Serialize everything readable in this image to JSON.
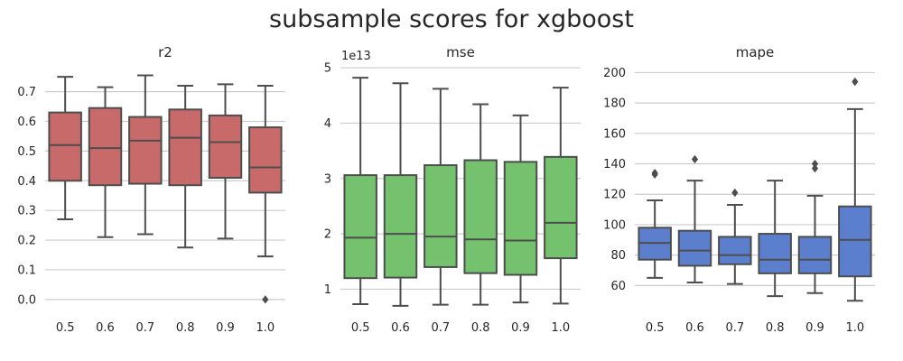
{
  "figure": {
    "title": "subsample scores for xgboost"
  },
  "chart_data": [
    {
      "type": "box",
      "title": "r2",
      "color": "#c96a6a",
      "categories": [
        "0.5",
        "0.6",
        "0.7",
        "0.8",
        "0.9",
        "1.0"
      ],
      "yticks": [
        0.0,
        0.1,
        0.2,
        0.3,
        0.4,
        0.5,
        0.6,
        0.7
      ],
      "ytick_labels": [
        "0.0",
        "0.1",
        "0.2",
        "0.3",
        "0.4",
        "0.5",
        "0.6",
        "0.7"
      ],
      "ylim": [
        -0.04,
        0.79
      ],
      "offset_text": "",
      "grid": true,
      "boxes": [
        {
          "low": 0.27,
          "q1": 0.4,
          "median": 0.52,
          "q3": 0.63,
          "high": 0.75,
          "fliers": []
        },
        {
          "low": 0.21,
          "q1": 0.385,
          "median": 0.51,
          "q3": 0.645,
          "high": 0.715,
          "fliers": []
        },
        {
          "low": 0.22,
          "q1": 0.39,
          "median": 0.535,
          "q3": 0.615,
          "high": 0.755,
          "fliers": []
        },
        {
          "low": 0.175,
          "q1": 0.385,
          "median": 0.545,
          "q3": 0.64,
          "high": 0.72,
          "fliers": []
        },
        {
          "low": 0.205,
          "q1": 0.41,
          "median": 0.53,
          "q3": 0.62,
          "high": 0.725,
          "fliers": []
        },
        {
          "low": 0.145,
          "q1": 0.36,
          "median": 0.445,
          "q3": 0.58,
          "high": 0.72,
          "fliers": [
            0.0
          ]
        }
      ]
    },
    {
      "type": "box",
      "title": "mse",
      "color": "#74c16e",
      "categories": [
        "0.5",
        "0.6",
        "0.7",
        "0.8",
        "0.9",
        "1.0"
      ],
      "yticks": [
        1,
        2,
        3,
        4,
        5
      ],
      "ytick_labels": [
        "1",
        "2",
        "3",
        "4",
        "5"
      ],
      "ylim": [
        0.6,
        5.05
      ],
      "offset_text": "1e13",
      "grid": true,
      "boxes": [
        {
          "low": 0.73,
          "q1": 1.2,
          "median": 1.93,
          "q3": 3.06,
          "high": 4.82,
          "fliers": []
        },
        {
          "low": 0.7,
          "q1": 1.21,
          "median": 2.0,
          "q3": 3.06,
          "high": 4.72,
          "fliers": []
        },
        {
          "low": 0.72,
          "q1": 1.4,
          "median": 1.95,
          "q3": 3.24,
          "high": 4.62,
          "fliers": []
        },
        {
          "low": 0.72,
          "q1": 1.29,
          "median": 1.9,
          "q3": 3.33,
          "high": 4.34,
          "fliers": []
        },
        {
          "low": 0.76,
          "q1": 1.26,
          "median": 1.88,
          "q3": 3.3,
          "high": 4.14,
          "fliers": []
        },
        {
          "low": 0.74,
          "q1": 1.56,
          "median": 2.2,
          "q3": 3.39,
          "high": 4.64,
          "fliers": []
        }
      ]
    },
    {
      "type": "box",
      "title": "mape",
      "color": "#5b7fcd",
      "categories": [
        "0.5",
        "0.6",
        "0.7",
        "0.8",
        "0.9",
        "1.0"
      ],
      "yticks": [
        60,
        80,
        100,
        120,
        140,
        160,
        180,
        200
      ],
      "ytick_labels": [
        "60",
        "80",
        "100",
        "120",
        "140",
        "160",
        "180",
        "200"
      ],
      "ylim": [
        43,
        205
      ],
      "offset_text": "",
      "grid": true,
      "boxes": [
        {
          "low": 65,
          "q1": 77,
          "median": 88,
          "q3": 98,
          "high": 116,
          "fliers": [
            133,
            134
          ]
        },
        {
          "low": 62,
          "q1": 73,
          "median": 83,
          "q3": 96,
          "high": 129,
          "fliers": [
            143
          ]
        },
        {
          "low": 61,
          "q1": 74,
          "median": 80,
          "q3": 92,
          "high": 113,
          "fliers": [
            121
          ]
        },
        {
          "low": 53,
          "q1": 68,
          "median": 77,
          "q3": 94,
          "high": 129,
          "fliers": []
        },
        {
          "low": 55,
          "q1": 68,
          "median": 77,
          "q3": 92,
          "high": 119,
          "fliers": [
            137,
            140
          ]
        },
        {
          "low": 50,
          "q1": 66,
          "median": 90,
          "q3": 112,
          "high": 176,
          "fliers": [
            194
          ]
        }
      ]
    }
  ]
}
